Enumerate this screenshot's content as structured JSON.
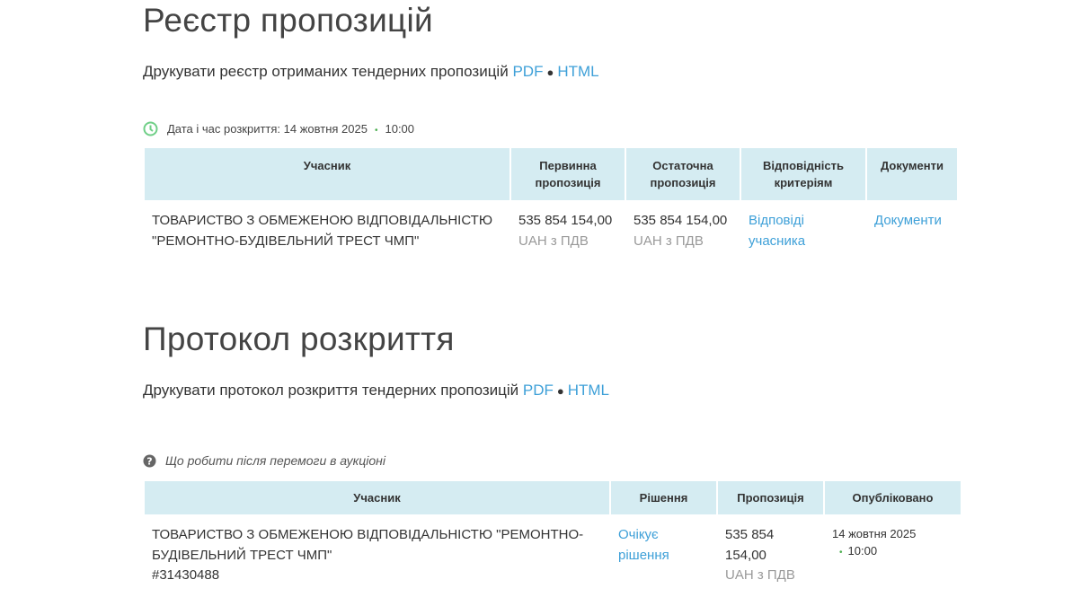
{
  "registry": {
    "title": "Реєстр пропозицій",
    "print_text": "Друкувати реєстр отриманих тендерних пропозицій",
    "pdf": "PDF",
    "html": "HTML",
    "sep": "●",
    "opening_label": "Дата і час розкриття: 14 жовтня 2025",
    "opening_time": "10:00",
    "headers": [
      "Учасник",
      "Первинна пропозиція",
      "Остаточна пропозиція",
      "Відповідність критеріям",
      "Документи"
    ],
    "row": {
      "participant": "ТОВАРИСТВО З ОБМЕЖЕНОЮ ВІДПОВІДАЛЬНІСТЮ \"РЕМОНТНО-БУДІВЕЛЬНИЙ ТРЕСТ ЧМП\"",
      "initial_amount": "535 854 154,00",
      "initial_currency": "UAH з ПДВ",
      "final_amount": "535 854 154,00",
      "final_currency": "UAH з ПДВ",
      "criteria_link": "Відповіді учасника",
      "documents_link": "Документи"
    }
  },
  "protocol": {
    "title": "Протокол розкриття",
    "print_text": "Друкувати протокол розкриття тендерних пропозицій",
    "pdf": "PDF",
    "html": "HTML",
    "sep": "●",
    "help_link": "Що робити після перемоги в аукціоні",
    "headers": [
      "Учасник",
      "Рішення",
      "Пропозиція",
      "Опубліковано"
    ],
    "row": {
      "participant": "ТОВАРИСТВО З ОБМЕЖЕНОЮ ВІДПОВІДАЛЬНІСТЮ \"РЕМОНТНО-БУДІВЕЛЬНИЙ ТРЕСТ ЧМП\"",
      "code": "#31430488",
      "decision": "Очікує рішення",
      "amount": "535 854 154,00",
      "currency": "UAH з ПДВ",
      "published_date": "14 жовтня 2025",
      "published_time": "10:00"
    }
  },
  "colors": {
    "link": "#3ea0d8",
    "header_bg": "#d5ecf2",
    "clock": "#4caf50"
  }
}
